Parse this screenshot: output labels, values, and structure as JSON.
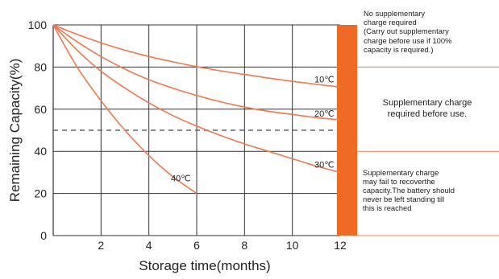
{
  "chart_data": {
    "type": "line",
    "xlabel": "Storage time(months)",
    "ylabel": "Remaining Capacity(%)",
    "x_ticks": [
      "2",
      "4",
      "6",
      "8",
      "10",
      "12"
    ],
    "y_ticks": [
      "0",
      "20",
      "40",
      "60",
      "80",
      "100"
    ],
    "xlim": [
      0,
      12
    ],
    "ylim": [
      0,
      100
    ],
    "grid": true,
    "reference_line": {
      "y": 50,
      "style": "dashed"
    },
    "series": [
      {
        "name": "10℃",
        "x": [
          0,
          1,
          2,
          3,
          4,
          5,
          6,
          7,
          8,
          9,
          10,
          11,
          12
        ],
        "values": [
          100,
          95.5,
          91.5,
          88,
          85,
          82.5,
          80.2,
          78.2,
          76.5,
          74.8,
          73.2,
          71.8,
          70.5
        ]
      },
      {
        "name": "20℃",
        "x": [
          0,
          1,
          2,
          3,
          4,
          5,
          6,
          7,
          8,
          9,
          10,
          11,
          12
        ],
        "values": [
          100,
          92,
          85,
          79,
          74,
          70,
          66.5,
          63.5,
          61,
          59,
          57.5,
          56,
          55
        ]
      },
      {
        "name": "30℃",
        "x": [
          0,
          1,
          2,
          3,
          4,
          5,
          6,
          7,
          8,
          9,
          10,
          11,
          12
        ],
        "values": [
          100,
          88,
          78,
          70,
          63,
          57,
          52,
          47.5,
          43.5,
          40,
          36.5,
          33,
          30
        ]
      },
      {
        "name": "40℃",
        "x": [
          0,
          1,
          2,
          3,
          4,
          5,
          6
        ],
        "values": [
          100,
          80,
          64,
          50,
          38,
          28,
          20
        ]
      }
    ],
    "colors": {
      "curve": "#f07850",
      "zone_bar": "#ee6a25",
      "zone_line": "#f07850",
      "grid": "#333333",
      "dashed": "#666666"
    }
  },
  "zones": {
    "top_lines": [
      "No supplementary",
      "charge required",
      "(Carry out supplementary",
      "charge before use if 100%",
      "capacity is required.)"
    ],
    "middle_lines": [
      "Supplementary charge",
      "required before use."
    ],
    "bottom_lines": [
      "Supplementary charge",
      "may fail to recoverthe",
      "capacity.The battery should",
      "never be left standing till",
      "this is reached"
    ],
    "boundaries": [
      80,
      40,
      0
    ]
  }
}
